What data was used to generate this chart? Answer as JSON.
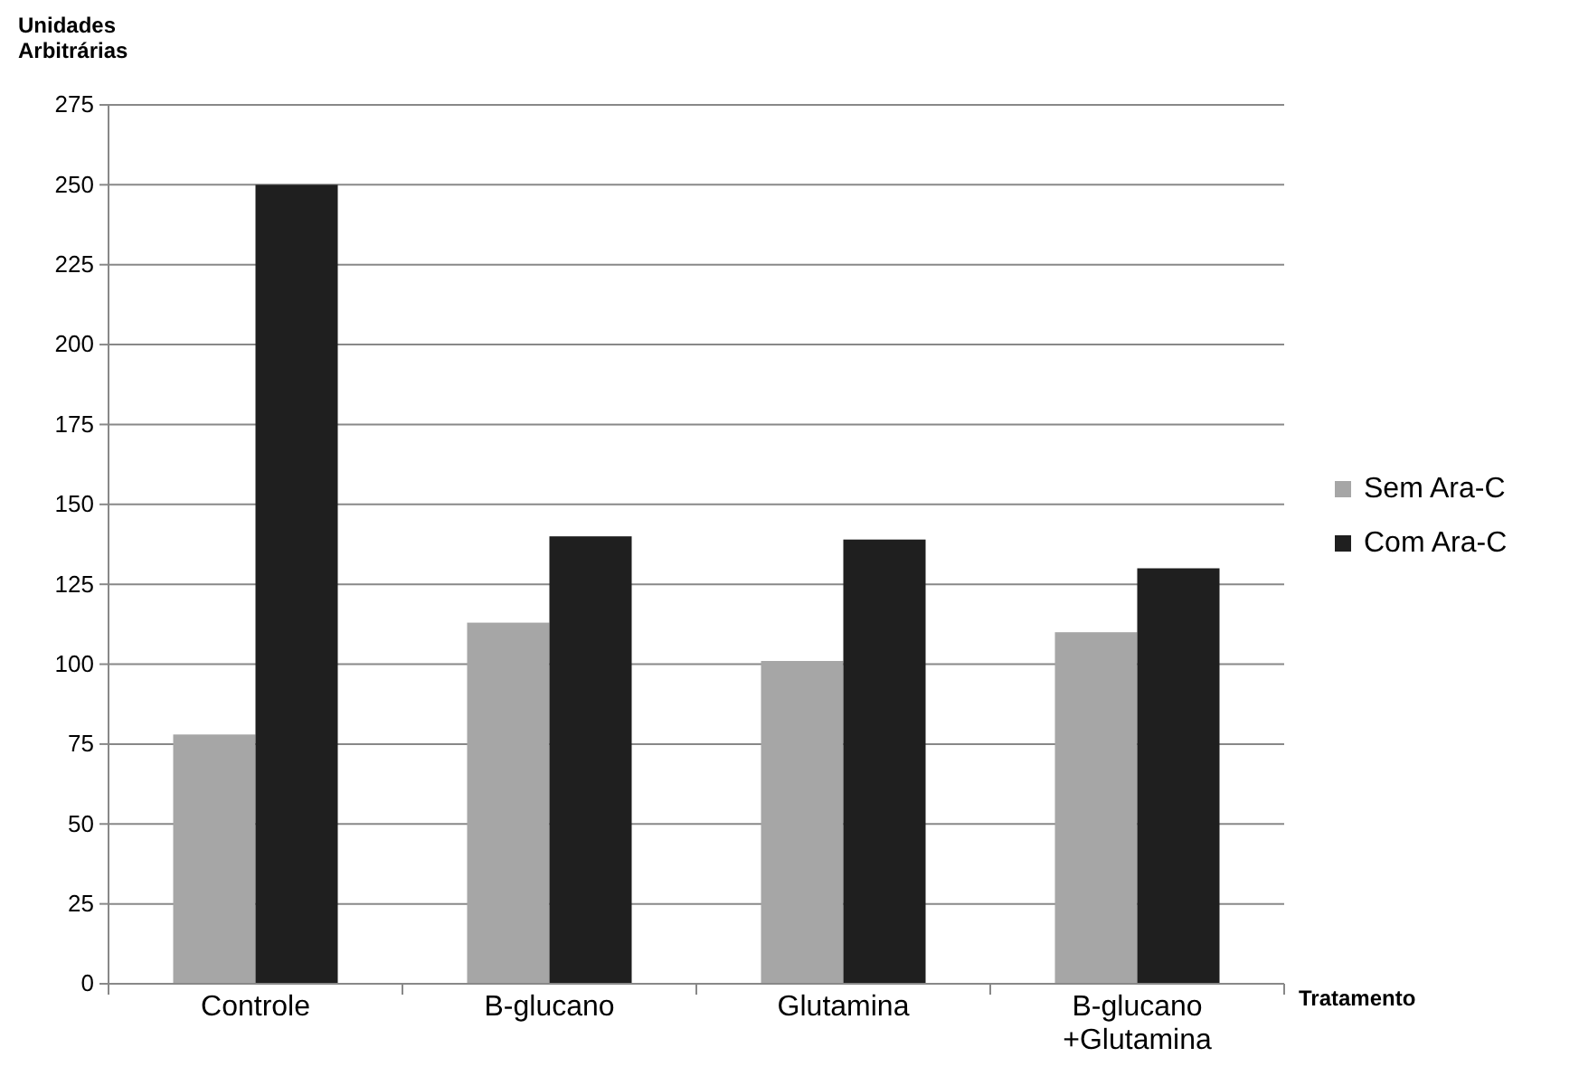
{
  "chart_data": {
    "type": "bar",
    "ylabel": "Unidades Arbitrárias",
    "xlabel": "Tratamento",
    "categories": [
      "Controle",
      "B-glucano",
      "Glutamina",
      "B-glucano +Glutamina"
    ],
    "series": [
      {
        "name": "Sem Ara-C",
        "color": "#a6a6a6",
        "values": [
          78,
          113,
          101,
          110
        ]
      },
      {
        "name": "Com Ara-C",
        "color": "#1f1f1f",
        "values": [
          250,
          140,
          139,
          130
        ]
      }
    ],
    "ylim": [
      0,
      275
    ],
    "yticks": [
      0,
      25,
      50,
      75,
      100,
      125,
      150,
      175,
      200,
      225,
      250,
      275
    ],
    "grid": "y",
    "legend": "right"
  }
}
